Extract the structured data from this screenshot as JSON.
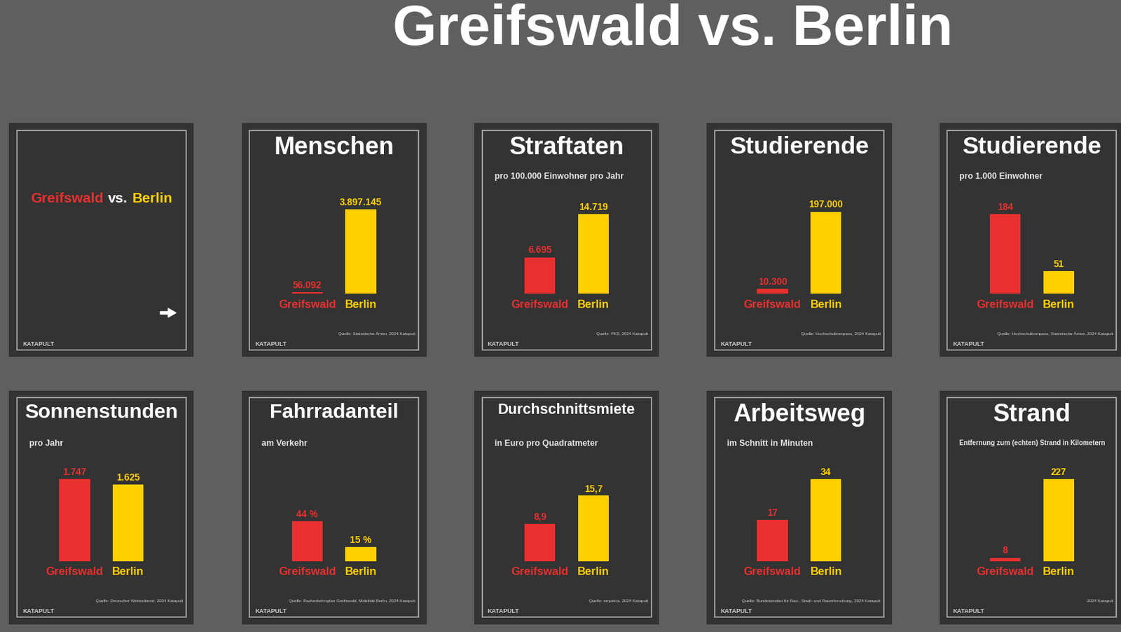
{
  "title": "Greifswald vs. Berlin",
  "cover": {
    "left": "Greifswald",
    "middle": "vs.",
    "right": "Berlin"
  },
  "brand": "KATAPULT",
  "chart_data": [
    {
      "type": "bar",
      "title": "Menschen",
      "categories": [
        "Greifswald",
        "Berlin"
      ],
      "values": [
        56092,
        3897145
      ],
      "value_labels": [
        "56.092",
        "3.897.145"
      ],
      "colors": [
        "#e8302f",
        "#ffd000"
      ],
      "ylim": [
        0,
        5000000
      ],
      "tick_labels": "x",
      "data_labels": true,
      "source": "Quelle: Statistische Ämter, 2024 Katapult"
    },
    {
      "type": "bar",
      "title": "Straftaten",
      "subtitle": "pro 100.000 Einwohner pro Jahr",
      "categories": [
        "Greifswald",
        "Berlin"
      ],
      "values": [
        6695,
        14719
      ],
      "value_labels": [
        "6.695",
        "14.719"
      ],
      "colors": [
        "#e8302f",
        "#ffd000"
      ],
      "ylim": [
        0,
        20000
      ],
      "tick_labels": "x",
      "data_labels": true,
      "source": "Quelle: PKS, 2024 Katapult"
    },
    {
      "type": "bar",
      "title": "Studierende",
      "categories": [
        "Greifswald",
        "Berlin"
      ],
      "values": [
        10300,
        197000
      ],
      "value_labels": [
        "10.300",
        "197.000"
      ],
      "colors": [
        "#e8302f",
        "#ffd000"
      ],
      "ylim": [
        0,
        260000
      ],
      "tick_labels": "x",
      "data_labels": true,
      "source": "Quelle: Hochschulkompass, 2024 Katapult"
    },
    {
      "type": "bar",
      "title": "Studierende",
      "subtitle": "pro 1.000 Einwohner",
      "categories": [
        "Greifswald",
        "Berlin"
      ],
      "values": [
        184,
        51
      ],
      "colors": [
        "#e8302f",
        "#ffd000"
      ],
      "ylim": [
        0,
        250
      ],
      "tick_labels": "x",
      "data_labels": true,
      "source": "Quelle: Hochschulkompass, Statistische Ämter, 2024 Katapult"
    },
    {
      "type": "bar",
      "title": "Sonnenstunden",
      "subtitle": "pro Jahr",
      "categories": [
        "Greifswald",
        "Berlin"
      ],
      "values": [
        1747,
        1625
      ],
      "value_labels": [
        "1.747",
        "1.625"
      ],
      "colors": [
        "#e8302f",
        "#ffd000"
      ],
      "ylim": [
        0,
        2300
      ],
      "tick_labels": "x",
      "data_labels": true,
      "source": "Quelle: Deutscher Wetterdienst, 2024 Katapult"
    },
    {
      "type": "bar",
      "title": "Fahrradanteil",
      "subtitle": "am Verkehr",
      "categories": [
        "Greifswald",
        "Berlin"
      ],
      "values": [
        44,
        15
      ],
      "value_labels": [
        "44 %",
        "15 %"
      ],
      "colors": [
        "#e8302f",
        "#ffd000"
      ],
      "ylim": [
        0,
        120
      ],
      "tick_labels": "x",
      "data_labels": true,
      "source": "Quelle: Radverkehrsplan Greifswald, Mobilität Berlin, 2024 Katapult"
    },
    {
      "type": "bar",
      "title": "Durchschnittsmiete",
      "subtitle": "in Euro pro Quadratmeter",
      "categories": [
        "Greifswald",
        "Berlin"
      ],
      "values": [
        8.9,
        15.7
      ],
      "value_labels": [
        "8,9",
        "15,7"
      ],
      "colors": [
        "#e8302f",
        "#ffd000"
      ],
      "ylim": [
        0,
        26
      ],
      "tick_labels": "x",
      "data_labels": true,
      "source": "Quelle: empirica, 2024 Katapult"
    },
    {
      "type": "bar",
      "title": "Arbeitsweg",
      "subtitle": "im Schnitt in Minuten",
      "categories": [
        "Greifswald",
        "Berlin"
      ],
      "values": [
        17,
        34
      ],
      "colors": [
        "#e8302f",
        "#ffd000"
      ],
      "ylim": [
        0,
        45
      ],
      "tick_labels": "x",
      "data_labels": true,
      "source": "Quelle: Bundesinstitut für Bau-, Stadt- und Raumforschung, 2024 Katapult"
    },
    {
      "type": "bar",
      "title": "Strand",
      "subtitle": "Entfernung zum (echten) Strand in Kilometern",
      "categories": [
        "Greifswald",
        "Berlin"
      ],
      "values": [
        8,
        227
      ],
      "colors": [
        "#e8302f",
        "#ffd000"
      ],
      "ylim": [
        0,
        300
      ],
      "tick_labels": "x",
      "data_labels": true,
      "source": "2024 Katapult"
    }
  ]
}
